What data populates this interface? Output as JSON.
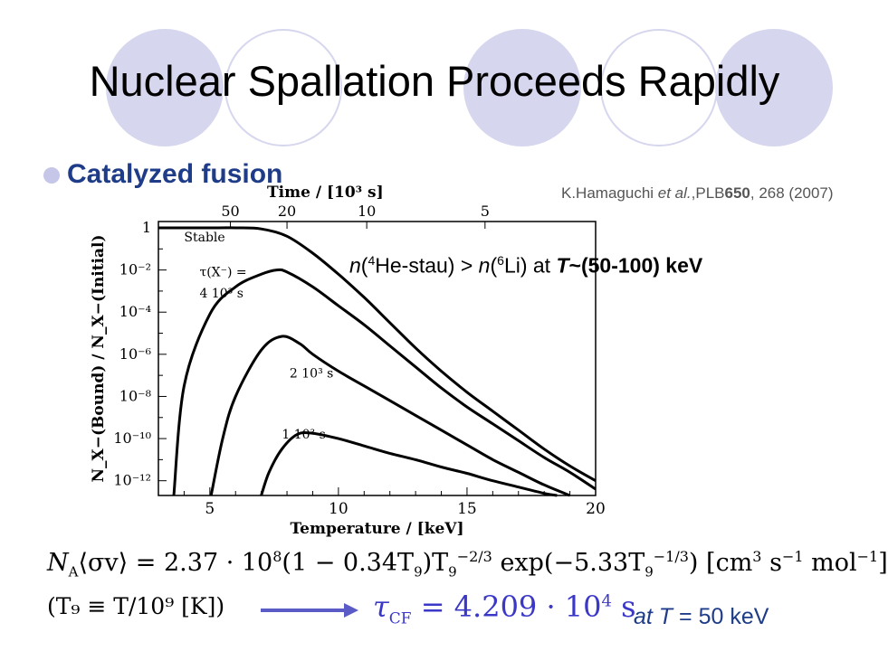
{
  "slide": {
    "title": "Nuclear Spallation Proceeds Rapidly",
    "bullet": "Catalyzed fusion",
    "reference": {
      "author": "K.Hamaguchi ",
      "etal": "et al.",
      "journal": ",PLB",
      "volume": "650",
      "rest": ", 268 (2007)"
    },
    "annotation": {
      "n1": "n",
      "p1": "(",
      "mass1": "4",
      "species1": "He-stau) > ",
      "n2": "n",
      "p2": "(",
      "mass2": "6",
      "species2": "Li) at ",
      "T": "T",
      "range": "~(50-100) keV"
    },
    "formula": {
      "lhs_N": "N",
      "lhs_sub": "A",
      "lhs_rest": "⟨σv⟩ = 2.37 · 10",
      "exp8": "8",
      "mid": "(1 − 0.34T",
      "sub9a": "9",
      "mid2": ")T",
      "sub9b": "9",
      "exp1": "−2/3",
      "mid3": " exp(−5.33T",
      "sub9c": "9",
      "exp2": "−1/3",
      "tail": ") [cm",
      "exp3": "3",
      "tail2": " s",
      "exp4": "−1",
      "tail3": " mol",
      "exp5": "−1",
      "tail4": "]"
    },
    "t9_definition": "(T₉ ≡ T/10⁹ [K])",
    "tau": {
      "symbol": "τ",
      "sub": "CF",
      "value": " = 4.209 · 10",
      "exp": "4",
      "unit": " s"
    },
    "at_T": {
      "prefix": "at ",
      "T": "T",
      "rest": " = 50 keV"
    },
    "colors": {
      "accent": "#1f3c88",
      "tau": "#3b38c8",
      "decor": "#d6d6ee"
    }
  },
  "chart_data": {
    "type": "line",
    "top_axis_title": "Time / [10³ s]",
    "top_ticks": [
      "50",
      "20",
      "10",
      "5"
    ],
    "xlabel": "Temperature / [keV]",
    "ylabel": "N_X−(Bound) / N_X−(Initial)",
    "x_ticks": [
      "5",
      "10",
      "15",
      "20"
    ],
    "y_ticks": [
      "1",
      "10⁻²",
      "10⁻⁴",
      "10⁻⁶",
      "10⁻⁸",
      "10⁻¹⁰",
      "10⁻¹²"
    ],
    "xlim": [
      3,
      20
    ],
    "ylim_log10": [
      -12.7,
      0.3
    ],
    "series": [
      {
        "name": "Stable",
        "points": [
          [
            3,
            0
          ],
          [
            4,
            0
          ],
          [
            5,
            0
          ],
          [
            6,
            0
          ],
          [
            7,
            -0.05
          ],
          [
            8,
            -0.4
          ],
          [
            9,
            -1.2
          ],
          [
            10,
            -2.2
          ],
          [
            11,
            -3.3
          ],
          [
            12,
            -4.5
          ],
          [
            13,
            -5.7
          ],
          [
            14,
            -6.8
          ],
          [
            15,
            -7.8
          ],
          [
            16,
            -8.7
          ],
          [
            17,
            -9.6
          ],
          [
            18,
            -10.5
          ],
          [
            19,
            -11.3
          ],
          [
            20,
            -12.0
          ]
        ]
      },
      {
        "name": "4 10³ s",
        "points": [
          [
            3.6,
            -12.7
          ],
          [
            4,
            -7.5
          ],
          [
            5,
            -4.1
          ],
          [
            6,
            -2.8
          ],
          [
            7,
            -2.2
          ],
          [
            7.6,
            -2.0
          ],
          [
            8,
            -2.1
          ],
          [
            9,
            -2.8
          ],
          [
            10,
            -3.7
          ],
          [
            11,
            -4.6
          ],
          [
            12,
            -5.6
          ],
          [
            13,
            -6.6
          ],
          [
            14,
            -7.6
          ],
          [
            15,
            -8.5
          ],
          [
            16,
            -9.3
          ],
          [
            17,
            -10.1
          ],
          [
            18,
            -10.9
          ],
          [
            19,
            -11.6
          ],
          [
            20,
            -12.4
          ]
        ]
      },
      {
        "name": "2 10³ s",
        "points": [
          [
            5.05,
            -12.7
          ],
          [
            5.5,
            -10.0
          ],
          [
            6,
            -8.0
          ],
          [
            7,
            -5.8
          ],
          [
            7.8,
            -5.15
          ],
          [
            8.5,
            -5.5
          ],
          [
            9,
            -6.0
          ],
          [
            10,
            -6.8
          ],
          [
            11,
            -7.5
          ],
          [
            12,
            -8.2
          ],
          [
            13,
            -8.9
          ],
          [
            14,
            -9.6
          ],
          [
            15,
            -10.3
          ],
          [
            16,
            -11.0
          ],
          [
            17,
            -11.6
          ],
          [
            18,
            -12.2
          ],
          [
            19,
            -12.7
          ]
        ]
      },
      {
        "name": "1 10³ s",
        "points": [
          [
            7.0,
            -12.7
          ],
          [
            7.3,
            -11.6
          ],
          [
            7.8,
            -10.5
          ],
          [
            8.4,
            -9.8
          ],
          [
            9,
            -9.75
          ],
          [
            10,
            -10.0
          ],
          [
            11,
            -10.35
          ],
          [
            12,
            -10.7
          ],
          [
            13,
            -11.0
          ],
          [
            14,
            -11.35
          ],
          [
            15,
            -11.65
          ],
          [
            16,
            -12.0
          ],
          [
            17,
            -12.3
          ],
          [
            18,
            -12.6
          ],
          [
            18.5,
            -12.7
          ]
        ]
      }
    ],
    "annotations": [
      {
        "text": "Stable"
      },
      {
        "text": "τ(X⁻) ="
      },
      {
        "text": "4 10³ s"
      },
      {
        "text": "2 10³ s"
      },
      {
        "text": "1 10³ s"
      }
    ],
    "grid": false,
    "legend": "none"
  }
}
